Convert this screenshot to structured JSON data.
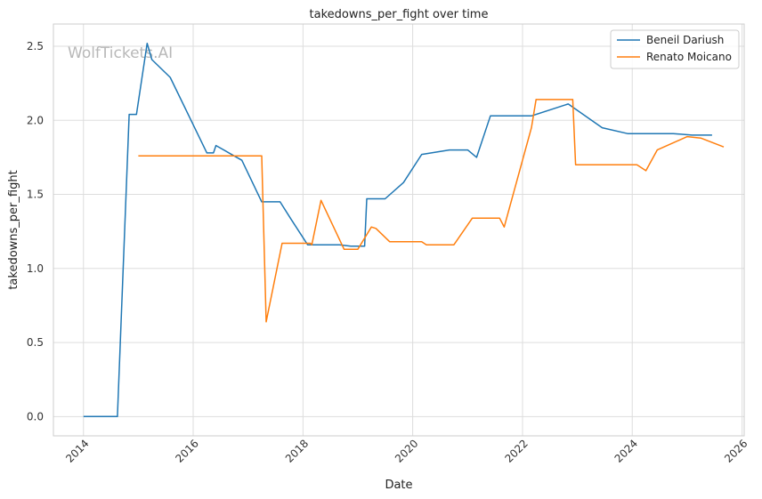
{
  "chart_data": {
    "type": "line",
    "title": "takedowns_per_fight over time",
    "xlabel": "Date",
    "ylabel": "takedowns_per_fight",
    "watermark": "WolfTickets.AI",
    "xlim": [
      "2013-06-15",
      "2026-01-15"
    ],
    "ylim": [
      -0.13,
      2.65
    ],
    "x_ticks": [
      "2014",
      "2016",
      "2018",
      "2020",
      "2022",
      "2024",
      "2026"
    ],
    "y_ticks": [
      "0.0",
      "0.5",
      "1.0",
      "1.5",
      "2.0",
      "2.5"
    ],
    "grid": true,
    "legend_position": "top-right",
    "series": [
      {
        "name": "Beneil Dariush",
        "color": "#1f77b4",
        "points": [
          [
            "2014-01-01",
            0.0
          ],
          [
            "2014-08-15",
            0.0
          ],
          [
            "2014-11-01",
            2.04
          ],
          [
            "2014-12-20",
            2.04
          ],
          [
            "2015-03-01",
            2.52
          ],
          [
            "2015-04-01",
            2.41
          ],
          [
            "2015-08-01",
            2.29
          ],
          [
            "2016-04-01",
            1.78
          ],
          [
            "2016-05-15",
            1.78
          ],
          [
            "2016-06-01",
            1.83
          ],
          [
            "2016-11-20",
            1.73
          ],
          [
            "2017-04-01",
            1.45
          ],
          [
            "2017-07-15",
            1.45
          ],
          [
            "2017-08-01",
            1.45
          ],
          [
            "2017-10-15",
            1.33
          ],
          [
            "2018-02-01",
            1.16
          ],
          [
            "2018-09-01",
            1.16
          ],
          [
            "2018-11-15",
            1.15
          ],
          [
            "2019-02-15",
            1.15
          ],
          [
            "2019-03-01",
            1.47
          ],
          [
            "2019-07-01",
            1.47
          ],
          [
            "2019-11-01",
            1.58
          ],
          [
            "2020-03-01",
            1.77
          ],
          [
            "2020-09-01",
            1.8
          ],
          [
            "2021-01-01",
            1.8
          ],
          [
            "2021-03-01",
            1.75
          ],
          [
            "2021-06-01",
            2.03
          ],
          [
            "2022-03-01",
            2.03
          ],
          [
            "2022-11-01",
            2.11
          ],
          [
            "2023-06-15",
            1.95
          ],
          [
            "2023-12-01",
            1.91
          ],
          [
            "2024-10-01",
            1.91
          ],
          [
            "2025-02-01",
            1.9
          ],
          [
            "2025-06-15",
            1.9
          ]
        ]
      },
      {
        "name": "Renato Moicano",
        "color": "#ff7f0e",
        "points": [
          [
            "2015-01-01",
            1.76
          ],
          [
            "2017-04-01",
            1.76
          ],
          [
            "2017-05-01",
            0.64
          ],
          [
            "2017-08-15",
            1.17
          ],
          [
            "2018-02-20",
            1.17
          ],
          [
            "2018-03-01",
            1.16
          ],
          [
            "2018-05-01",
            1.46
          ],
          [
            "2018-10-01",
            1.13
          ],
          [
            "2019-01-01",
            1.13
          ],
          [
            "2019-04-01",
            1.28
          ],
          [
            "2019-05-01",
            1.27
          ],
          [
            "2019-08-01",
            1.18
          ],
          [
            "2020-03-01",
            1.18
          ],
          [
            "2020-04-01",
            1.16
          ],
          [
            "2020-10-01",
            1.16
          ],
          [
            "2021-02-01",
            1.34
          ],
          [
            "2021-08-01",
            1.34
          ],
          [
            "2021-09-01",
            1.28
          ],
          [
            "2022-03-01",
            1.95
          ],
          [
            "2022-04-01",
            2.14
          ],
          [
            "2022-12-01",
            2.14
          ],
          [
            "2022-12-20",
            1.7
          ],
          [
            "2024-02-01",
            1.7
          ],
          [
            "2024-04-01",
            1.66
          ],
          [
            "2024-06-15",
            1.8
          ],
          [
            "2025-01-01",
            1.89
          ],
          [
            "2025-04-01",
            1.88
          ],
          [
            "2025-09-01",
            1.82
          ]
        ]
      }
    ]
  }
}
